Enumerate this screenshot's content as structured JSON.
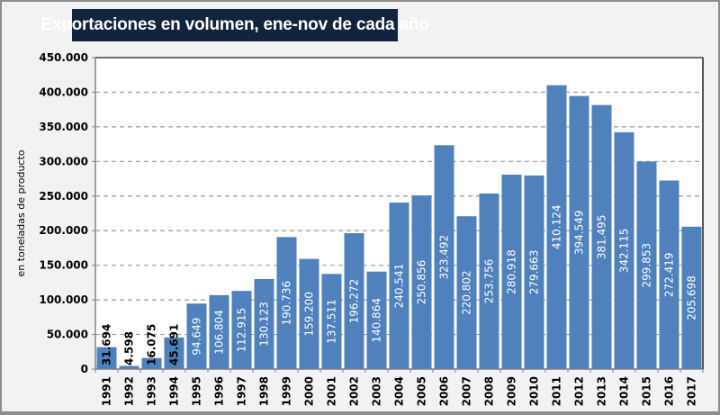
{
  "chart_data": {
    "type": "bar",
    "title": "Exportaciones en volumen, ene-nov de cada año",
    "xlabel": "",
    "ylabel": "en toneladas de producto",
    "ylim": [
      0,
      450000
    ],
    "yticks": [
      0,
      50000,
      100000,
      150000,
      200000,
      250000,
      300000,
      350000,
      400000,
      450000
    ],
    "ytick_labels": [
      "0",
      "50.000",
      "100.000",
      "150.000",
      "200.000",
      "250.000",
      "300.000",
      "350.000",
      "400.000",
      "450.000"
    ],
    "grid": true,
    "legend": "none",
    "bar_color": "#4f81bd",
    "categories": [
      "1991",
      "1992",
      "1993",
      "1994",
      "1995",
      "1996",
      "1997",
      "1998",
      "1999",
      "2000",
      "2001",
      "2002",
      "2003",
      "2004",
      "2005",
      "2006",
      "2007",
      "2008",
      "2009",
      "2010",
      "2011",
      "2012",
      "2013",
      "2014",
      "2015",
      "2016",
      "2017"
    ],
    "values": [
      31694,
      4598,
      16075,
      45691,
      94649,
      106804,
      112915,
      130123,
      190736,
      159200,
      137511,
      196272,
      140864,
      240541,
      250856,
      323492,
      220802,
      253756,
      280918,
      279663,
      410124,
      394549,
      381495,
      342115,
      299853,
      272419,
      205698
    ],
    "data_labels": [
      "31.694",
      "4.598",
      "16.075",
      "45.691",
      "94.649",
      "106.804",
      "112.915",
      "130.123",
      "190.736",
      "159.200",
      "137.511",
      "196.272",
      "140.864",
      "240.541",
      "250.856",
      "323.492",
      "220.802",
      "253.756",
      "280.918",
      "279.663",
      "410.124",
      "394.549",
      "381.495",
      "342.115",
      "299.853",
      "272.419",
      "205.698"
    ]
  }
}
